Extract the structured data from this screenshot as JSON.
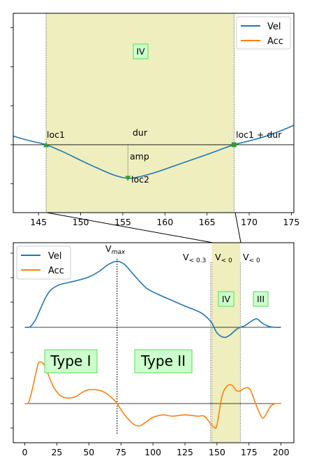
{
  "colors": {
    "vel": "#1f77b4",
    "acc": "#ff7f0e",
    "shade": "#eeeebf",
    "marker": "#2ca02c",
    "label_fill": "#ccffcc",
    "label_edge": "#55dd55"
  },
  "chart_data": [
    {
      "type": "line",
      "panel": "top",
      "xlim": [
        142,
        175.3
      ],
      "x_ticks": [
        145,
        150,
        155,
        160,
        165,
        170,
        175
      ],
      "x_tick_labels": [
        "145",
        "150",
        "155",
        "160",
        "165",
        "170",
        "175"
      ],
      "y_tick_labels": false,
      "legend": {
        "placement": "top-right",
        "entries": [
          "Vel",
          "Acc"
        ]
      },
      "series": [
        {
          "name": "Vel",
          "x": [
            142,
            144,
            145.9,
            148,
            150,
            152,
            154,
            155.6,
            157,
            159,
            161,
            163,
            165,
            166.5,
            168.2,
            170,
            172,
            174,
            175.3
          ],
          "values": [
            0.22,
            0.1,
            0.0,
            -0.19,
            -0.4,
            -0.6,
            -0.78,
            -0.86,
            -0.82,
            -0.7,
            -0.55,
            -0.4,
            -0.25,
            -0.13,
            0.0,
            0.1,
            0.22,
            0.38,
            0.5
          ]
        },
        {
          "name": "Acc",
          "x": [],
          "values": []
        }
      ],
      "shaded_region": {
        "from": 145.9,
        "to": 168.2,
        "label": "IV"
      },
      "markers": [
        {
          "label": "loc1",
          "x": 145.9,
          "y": 0.0
        },
        {
          "label": "loc2",
          "x": 155.6,
          "y": -0.86
        },
        {
          "label": "loc1 + dur",
          "x": 168.2,
          "y": 0.0
        }
      ],
      "annotations": [
        "dur",
        "amp"
      ]
    },
    {
      "type": "line",
      "panel": "bottom",
      "xlim": [
        -9,
        210
      ],
      "x_ticks": [
        0,
        25,
        50,
        75,
        100,
        125,
        150,
        175,
        200
      ],
      "x_tick_labels": [
        "0",
        "25",
        "50",
        "75",
        "100",
        "125",
        "150",
        "175",
        "200"
      ],
      "y_tick_labels": false,
      "legend": {
        "placement": "top-left",
        "entries": [
          "Vel",
          "Acc"
        ]
      },
      "series": [
        {
          "name": "Vel",
          "x": [
            0,
            4,
            8,
            12,
            16,
            20,
            25,
            30,
            40,
            50,
            58,
            65,
            72,
            78,
            85,
            95,
            105,
            115,
            125,
            135,
            140,
            145.9,
            150,
            155.6,
            160,
            165,
            168.2,
            172,
            177,
            181,
            185,
            190,
            195,
            200
          ],
          "values": [
            0.0,
            0.02,
            0.3,
            0.8,
            1.3,
            1.65,
            1.85,
            1.95,
            2.08,
            2.25,
            2.5,
            2.8,
            2.95,
            2.8,
            2.35,
            1.75,
            1.45,
            1.2,
            0.95,
            0.72,
            0.55,
            0.2,
            -0.25,
            -0.45,
            -0.35,
            -0.1,
            0.0,
            0.08,
            0.28,
            0.38,
            0.2,
            0.05,
            0.0,
            0.0
          ]
        },
        {
          "name": "Acc",
          "x": [
            0,
            3,
            6,
            10,
            12,
            15,
            18,
            22,
            26,
            30,
            35,
            40,
            45,
            50,
            55,
            60,
            65,
            70,
            72,
            78,
            85,
            90,
            95,
            100,
            108,
            115,
            125,
            135,
            140,
            145,
            148,
            150,
            154,
            158,
            162,
            165,
            168,
            172,
            176,
            180,
            185,
            188,
            192,
            196,
            200
          ],
          "values": [
            0.0,
            0.05,
            0.6,
            1.5,
            1.65,
            1.55,
            1.2,
            0.7,
            0.4,
            0.25,
            0.22,
            0.28,
            0.45,
            0.55,
            0.55,
            0.5,
            0.35,
            0.12,
            0.0,
            -0.45,
            -0.82,
            -0.88,
            -0.72,
            -0.55,
            -0.45,
            -0.5,
            -0.45,
            -0.5,
            -0.5,
            -0.8,
            -0.95,
            -0.85,
            0.3,
            0.7,
            0.72,
            0.52,
            0.5,
            0.62,
            0.55,
            0.02,
            -0.55,
            -0.45,
            -0.1,
            0.0,
            0.0
          ]
        }
      ],
      "zero_lines": {
        "vel": 0,
        "acc": 0
      },
      "vlines": [
        {
          "x": 72,
          "label": "V",
          "sub": "max",
          "style": "dotted"
        },
        {
          "x": 145,
          "label": "V",
          "sub": "< 0.3",
          "style": "dotted"
        },
        {
          "x": 146,
          "label": "V",
          "sub": "< 0",
          "style": "dotted"
        },
        {
          "x": 168.2,
          "label": "V",
          "sub": "< 0",
          "style": "dotted"
        }
      ],
      "shaded_region": {
        "from": 145.9,
        "to": 168.2
      },
      "region_labels": [
        "IV",
        "III"
      ],
      "type_labels": [
        "Type I",
        "Type II"
      ]
    }
  ]
}
